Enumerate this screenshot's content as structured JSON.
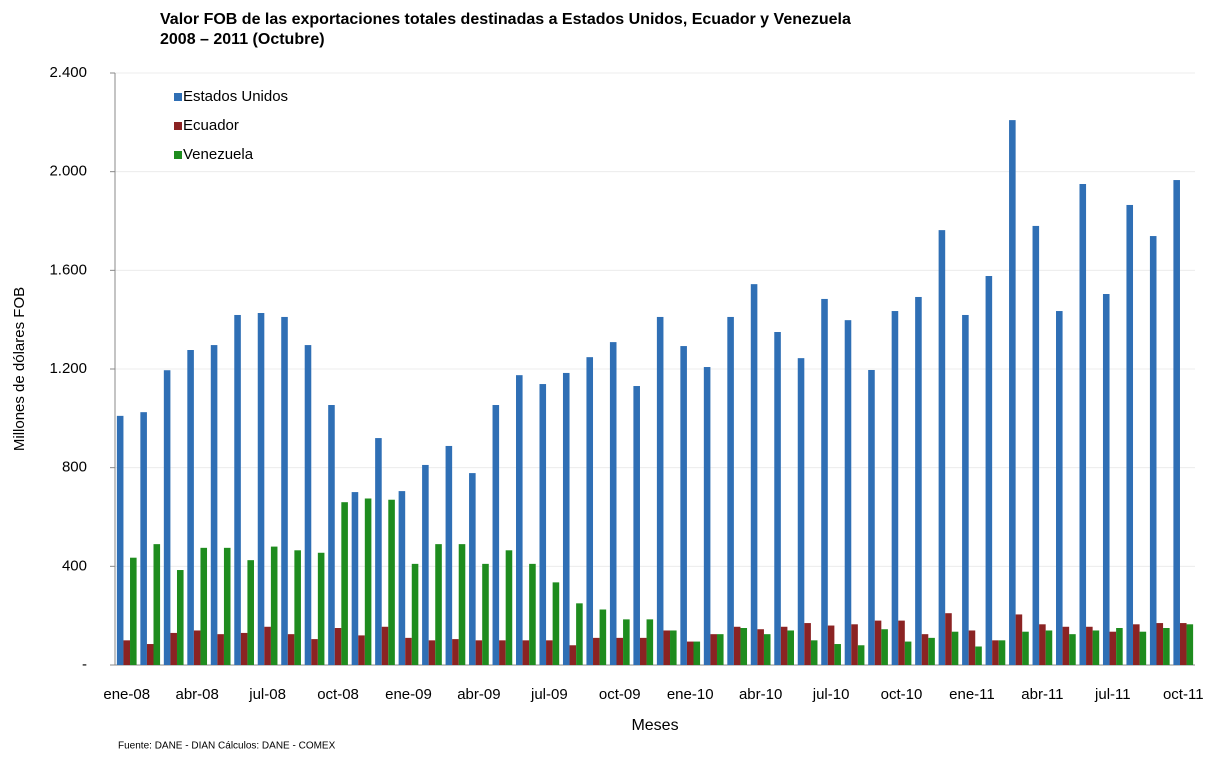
{
  "chart_data": {
    "type": "bar",
    "title": "Valor FOB de las exportaciones totales destinadas a Estados Unidos, Ecuador y Venezuela",
    "subtitle": "2008 – 2011 (Octubre)",
    "y_label": "Millones de dólares FOB",
    "x_label": "Meses",
    "note": "Fuente: DANE - DIAN   Cálculos: DANE - COMEX",
    "categories": [
      "ene-08",
      null,
      null,
      "abr-08",
      null,
      null,
      "jul-08",
      null,
      null,
      "oct-08",
      null,
      null,
      "ene-09",
      null,
      null,
      "abr-09",
      null,
      null,
      "jul-09",
      null,
      null,
      "oct-09",
      null,
      null,
      "ene-10",
      null,
      null,
      "abr-10",
      null,
      null,
      "jul-10",
      null,
      null,
      "oct-10",
      null,
      null,
      "ene-11",
      null,
      null,
      "abr-11",
      null,
      null,
      "jul-11",
      null,
      null,
      "oct-11"
    ],
    "series": [
      {
        "name": "Estados Unidos",
        "color": "#2f6fb5",
        "values": [
          1010,
          1025,
          1195,
          1277,
          1297,
          1419,
          1427,
          1411,
          1297,
          1054,
          701,
          920,
          705,
          811,
          888,
          778,
          1054,
          1175,
          1139,
          1184,
          1248,
          1309,
          1131,
          1411,
          1293,
          1208,
          1411,
          1544,
          1350,
          1244,
          1484,
          1398,
          1196,
          1435,
          1492,
          1763,
          1419,
          1577,
          2209,
          1780,
          1435,
          1950,
          1504,
          1865,
          1739,
          1966
        ]
      },
      {
        "name": "Ecuador",
        "color": "#8b2323",
        "values": [
          100,
          85,
          130,
          140,
          125,
          130,
          155,
          125,
          105,
          150,
          120,
          155,
          110,
          100,
          105,
          100,
          100,
          100,
          100,
          80,
          110,
          110,
          110,
          140,
          95,
          125,
          155,
          145,
          155,
          170,
          160,
          165,
          180,
          180,
          125,
          210,
          140,
          100,
          205,
          165,
          155,
          155,
          135,
          165,
          170,
          170
        ]
      },
      {
        "name": "Venezuela",
        "color": "#1e8c1e",
        "values": [
          435,
          490,
          385,
          475,
          475,
          425,
          480,
          465,
          455,
          660,
          675,
          670,
          410,
          490,
          490,
          410,
          465,
          410,
          335,
          250,
          225,
          185,
          185,
          140,
          95,
          125,
          150,
          125,
          140,
          100,
          85,
          80,
          145,
          95,
          110,
          135,
          75,
          100,
          135,
          140,
          125,
          140,
          150,
          135,
          150,
          165
        ]
      }
    ],
    "ylim": [
      0,
      2400
    ],
    "yticks": [
      {
        "value": 0,
        "label": "-"
      },
      400,
      800,
      {
        "value": 1200,
        "label": "1.200"
      },
      {
        "value": 1600,
        "label": "1.600"
      },
      {
        "value": 2000,
        "label": "2.000"
      },
      {
        "value": 2400,
        "label": "2.400"
      }
    ],
    "grid": true,
    "legend": "top-left"
  }
}
